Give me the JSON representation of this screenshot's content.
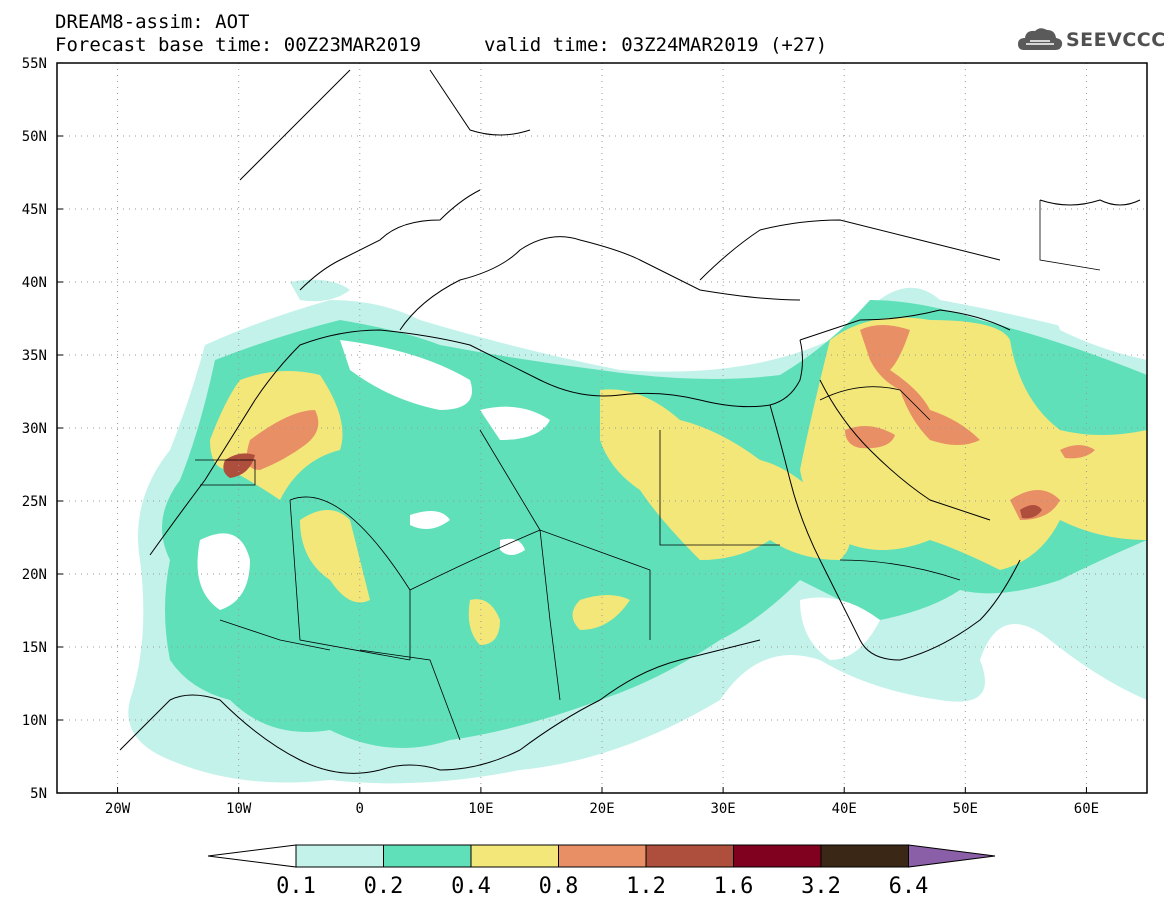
{
  "header": {
    "title_line1": "DREAM8-assim: AOT",
    "title_line2": "Forecast base time: 00Z23MAR2019",
    "valid_time": "valid time: 03Z24MAR2019 (+27)",
    "logo_text": "SEEVCCC",
    "logo_icon": "cloud-icon"
  },
  "map": {
    "lon_range": [
      -25,
      65
    ],
    "lat_range": [
      5,
      55
    ],
    "lat_labels": [
      "55N",
      "50N",
      "45N",
      "40N",
      "35N",
      "30N",
      "25N",
      "20N",
      "15N",
      "10N",
      "5N"
    ],
    "lon_labels": [
      "20W",
      "10W",
      "0",
      "10E",
      "20E",
      "30E",
      "40E",
      "50E",
      "60E"
    ],
    "grid": "dotted"
  },
  "colorbar": {
    "colors": [
      "#ffffff",
      "#c2f2ea",
      "#5fe0b8",
      "#f3e77a",
      "#e98f65",
      "#ae4e3d",
      "#800020",
      "#3a2716",
      "#8b5fa8"
    ],
    "labels": [
      "0.1",
      "0.2",
      "0.4",
      "0.8",
      "1.2",
      "1.6",
      "3.2",
      "6.4"
    ]
  }
}
